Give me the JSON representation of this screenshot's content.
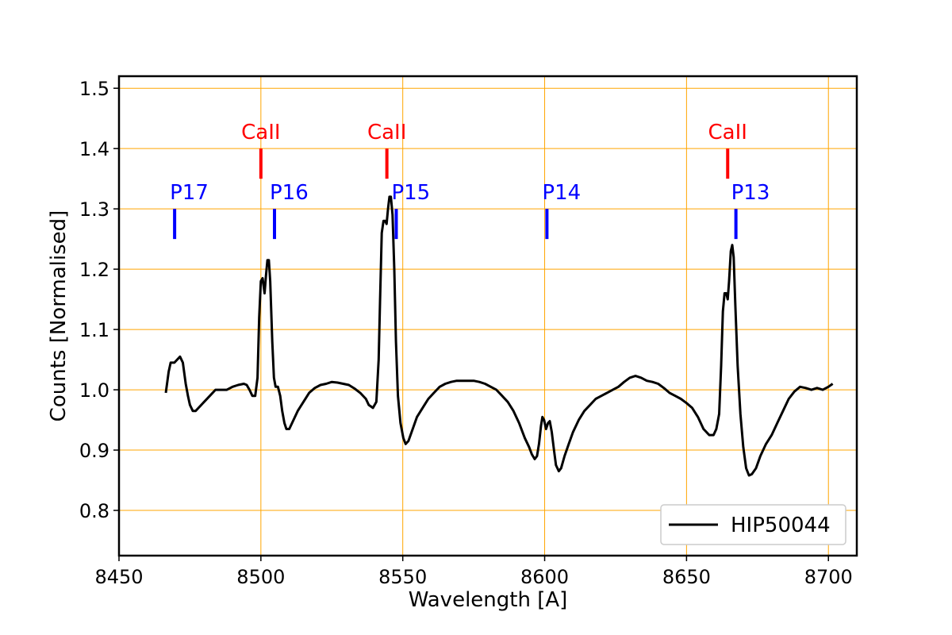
{
  "chart_data": {
    "type": "line",
    "xlabel": "Wavelength [A]",
    "ylabel": "Counts [Normalised]",
    "xlim": [
      8450,
      8710
    ],
    "ylim": [
      0.725,
      1.52
    ],
    "xticks": [
      "8450",
      "8500",
      "8550",
      "8600",
      "8650",
      "8700"
    ],
    "yticks": [
      "0.8",
      "0.9",
      "1.0",
      "1.1",
      "1.2",
      "1.3",
      "1.4",
      "1.5"
    ],
    "grid": true,
    "legend": {
      "placement": "lower-right"
    },
    "colors": {
      "grid": "#ffa500",
      "series": "#000000",
      "caii": "#ff0000",
      "paschen": "#0000ff"
    },
    "series": [
      {
        "name": "HIP50044",
        "points": [
          [
            8466.5,
            0.995
          ],
          [
            8467.5,
            1.03
          ],
          [
            8468.2,
            1.045
          ],
          [
            8469.5,
            1.045
          ],
          [
            8470.5,
            1.05
          ],
          [
            8471.5,
            1.055
          ],
          [
            8472.5,
            1.045
          ],
          [
            8473.5,
            1.01
          ],
          [
            8474.3,
            0.99
          ],
          [
            8475,
            0.975
          ],
          [
            8476,
            0.965
          ],
          [
            8477,
            0.965
          ],
          [
            8478,
            0.97
          ],
          [
            8480,
            0.98
          ],
          [
            8482,
            0.99
          ],
          [
            8484,
            1.0
          ],
          [
            8486,
            1.0
          ],
          [
            8488,
            1.0
          ],
          [
            8490,
            1.005
          ],
          [
            8492,
            1.008
          ],
          [
            8494,
            1.01
          ],
          [
            8495,
            1.008
          ],
          [
            8496,
            1.0
          ],
          [
            8497,
            0.99
          ],
          [
            8498,
            0.99
          ],
          [
            8498.8,
            1.02
          ],
          [
            8499.4,
            1.12
          ],
          [
            8500,
            1.18
          ],
          [
            8500.6,
            1.185
          ],
          [
            8501.3,
            1.16
          ],
          [
            8501.8,
            1.19
          ],
          [
            8502.3,
            1.215
          ],
          [
            8502.8,
            1.215
          ],
          [
            8503.3,
            1.18
          ],
          [
            8504,
            1.08
          ],
          [
            8504.6,
            1.02
          ],
          [
            8505.2,
            1.005
          ],
          [
            8506,
            1.005
          ],
          [
            8506.8,
            0.99
          ],
          [
            8507.5,
            0.965
          ],
          [
            8508.3,
            0.945
          ],
          [
            8509,
            0.935
          ],
          [
            8510,
            0.935
          ],
          [
            8511,
            0.945
          ],
          [
            8513,
            0.965
          ],
          [
            8515,
            0.98
          ],
          [
            8517,
            0.995
          ],
          [
            8519,
            1.003
          ],
          [
            8521,
            1.008
          ],
          [
            8523,
            1.01
          ],
          [
            8525,
            1.013
          ],
          [
            8527,
            1.012
          ],
          [
            8529,
            1.01
          ],
          [
            8531,
            1.008
          ],
          [
            8533,
            1.002
          ],
          [
            8535,
            0.995
          ],
          [
            8537,
            0.985
          ],
          [
            8538,
            0.975
          ],
          [
            8539.5,
            0.97
          ],
          [
            8540.7,
            0.98
          ],
          [
            8541.5,
            1.05
          ],
          [
            8542,
            1.15
          ],
          [
            8542.6,
            1.26
          ],
          [
            8543.2,
            1.28
          ],
          [
            8543.8,
            1.28
          ],
          [
            8544.3,
            1.275
          ],
          [
            8544.8,
            1.3
          ],
          [
            8545.3,
            1.32
          ],
          [
            8545.8,
            1.32
          ],
          [
            8546.4,
            1.29
          ],
          [
            8547,
            1.2
          ],
          [
            8547.6,
            1.08
          ],
          [
            8548.3,
            0.99
          ],
          [
            8549.2,
            0.945
          ],
          [
            8550.2,
            0.92
          ],
          [
            8551,
            0.91
          ],
          [
            8552,
            0.915
          ],
          [
            8553.5,
            0.935
          ],
          [
            8555,
            0.955
          ],
          [
            8557,
            0.97
          ],
          [
            8559,
            0.985
          ],
          [
            8561,
            0.995
          ],
          [
            8563,
            1.005
          ],
          [
            8565,
            1.01
          ],
          [
            8567,
            1.013
          ],
          [
            8569,
            1.015
          ],
          [
            8571,
            1.015
          ],
          [
            8573,
            1.015
          ],
          [
            8575,
            1.015
          ],
          [
            8577,
            1.013
          ],
          [
            8579,
            1.01
          ],
          [
            8581,
            1.005
          ],
          [
            8583,
            1.0
          ],
          [
            8585,
            0.99
          ],
          [
            8587,
            0.98
          ],
          [
            8589,
            0.965
          ],
          [
            8591,
            0.945
          ],
          [
            8593,
            0.92
          ],
          [
            8594.5,
            0.905
          ],
          [
            8595.5,
            0.893
          ],
          [
            8596.5,
            0.885
          ],
          [
            8597.3,
            0.89
          ],
          [
            8598,
            0.91
          ],
          [
            8598.7,
            0.94
          ],
          [
            8599.2,
            0.955
          ],
          [
            8599.8,
            0.95
          ],
          [
            8600.5,
            0.935
          ],
          [
            8601.2,
            0.945
          ],
          [
            8601.8,
            0.948
          ],
          [
            8602.5,
            0.93
          ],
          [
            8603.3,
            0.9
          ],
          [
            8604,
            0.875
          ],
          [
            8605,
            0.865
          ],
          [
            8605.8,
            0.87
          ],
          [
            8607,
            0.89
          ],
          [
            8608.5,
            0.91
          ],
          [
            8610,
            0.93
          ],
          [
            8612,
            0.95
          ],
          [
            8614,
            0.965
          ],
          [
            8616,
            0.975
          ],
          [
            8618,
            0.985
          ],
          [
            8620,
            0.99
          ],
          [
            8622,
            0.995
          ],
          [
            8624,
            1.0
          ],
          [
            8626,
            1.005
          ],
          [
            8628,
            1.013
          ],
          [
            8630,
            1.02
          ],
          [
            8632,
            1.023
          ],
          [
            8634,
            1.02
          ],
          [
            8636,
            1.015
          ],
          [
            8638,
            1.013
          ],
          [
            8640,
            1.01
          ],
          [
            8642,
            1.003
          ],
          [
            8644,
            0.995
          ],
          [
            8646,
            0.99
          ],
          [
            8648,
            0.985
          ],
          [
            8650,
            0.978
          ],
          [
            8652,
            0.97
          ],
          [
            8654,
            0.955
          ],
          [
            8656,
            0.935
          ],
          [
            8658,
            0.925
          ],
          [
            8659.5,
            0.925
          ],
          [
            8660.5,
            0.935
          ],
          [
            8661.5,
            0.96
          ],
          [
            8662.2,
            1.04
          ],
          [
            8662.8,
            1.13
          ],
          [
            8663.4,
            1.16
          ],
          [
            8664,
            1.16
          ],
          [
            8664.5,
            1.15
          ],
          [
            8665,
            1.18
          ],
          [
            8665.6,
            1.23
          ],
          [
            8666.1,
            1.24
          ],
          [
            8666.6,
            1.22
          ],
          [
            8667.2,
            1.14
          ],
          [
            8668,
            1.04
          ],
          [
            8669,
            0.96
          ],
          [
            8670,
            0.905
          ],
          [
            8671,
            0.87
          ],
          [
            8672,
            0.858
          ],
          [
            8673,
            0.86
          ],
          [
            8674.5,
            0.87
          ],
          [
            8676,
            0.89
          ],
          [
            8678,
            0.91
          ],
          [
            8680,
            0.925
          ],
          [
            8682,
            0.945
          ],
          [
            8684,
            0.965
          ],
          [
            8686,
            0.985
          ],
          [
            8688,
            0.997
          ],
          [
            8690,
            1.005
          ],
          [
            8692,
            1.003
          ],
          [
            8694,
            1.0
          ],
          [
            8696,
            1.003
          ],
          [
            8698,
            1.0
          ],
          [
            8700,
            1.005
          ],
          [
            8701.5,
            1.01
          ]
        ]
      }
    ],
    "annotations": {
      "caii": [
        {
          "label": "CaII",
          "x": 8500,
          "y_low": 1.35,
          "y_high": 1.4
        },
        {
          "label": "CaII",
          "x": 8544.4,
          "y_low": 1.35,
          "y_high": 1.4
        },
        {
          "label": "CaII",
          "x": 8664.5,
          "y_low": 1.35,
          "y_high": 1.4
        }
      ],
      "paschen": [
        {
          "label": "P17",
          "x": 8469.6,
          "y_low": 1.25,
          "y_high": 1.3
        },
        {
          "label": "P16",
          "x": 8504.8,
          "y_low": 1.25,
          "y_high": 1.3
        },
        {
          "label": "P15",
          "x": 8547.7,
          "y_low": 1.25,
          "y_high": 1.3
        },
        {
          "label": "P14",
          "x": 8600.8,
          "y_low": 1.25,
          "y_high": 1.3
        },
        {
          "label": "P13",
          "x": 8667.4,
          "y_low": 1.25,
          "y_high": 1.3
        }
      ]
    }
  }
}
